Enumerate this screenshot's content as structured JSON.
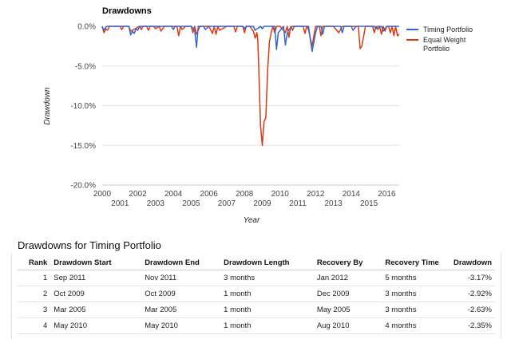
{
  "chart_data": {
    "type": "line",
    "title": "Drawdowns",
    "xlabel": "Year",
    "ylabel": "Drawdown",
    "xlim": [
      2000,
      2016.7
    ],
    "ylim": [
      -20,
      0
    ],
    "x_ticks": [
      "2000",
      "2001",
      "2002",
      "2003",
      "2004",
      "2005",
      "2006",
      "2007",
      "2008",
      "2009",
      "2010",
      "2011",
      "2012",
      "2013",
      "2014",
      "2015",
      "2016"
    ],
    "y_ticks": [
      "0.0%",
      "-5.0%",
      "-10.0%",
      "-15.0%",
      "-20.0%"
    ],
    "grid": true,
    "legend": "right",
    "series": [
      {
        "name": "Timing Portfolio",
        "color": "#3366cc",
        "x": [
          2000.0,
          2000.08,
          2000.17,
          2000.25,
          2001.5,
          2001.6,
          2001.7,
          2001.8,
          2001.9,
          2002.0,
          2002.1,
          2003.9,
          2004.0,
          2004.1,
          2005.0,
          2005.2,
          2005.3,
          2005.4,
          2005.7,
          2005.8,
          2005.9,
          2006.0,
          2007.9,
          2008.0,
          2008.1,
          2008.5,
          2008.6,
          2008.7,
          2008.8,
          2008.9,
          2009.0,
          2009.1,
          2009.7,
          2009.8,
          2009.9,
          2010.2,
          2010.3,
          2010.4,
          2010.5,
          2010.6,
          2010.7,
          2011.0,
          2011.6,
          2011.7,
          2011.8,
          2011.9,
          2012.0,
          2012.1,
          2012.3,
          2012.4,
          2012.5,
          2013.4,
          2013.5,
          2013.6,
          2014.0,
          2014.1,
          2014.2,
          2014.3,
          2015.3,
          2015.4,
          2015.5,
          2015.7,
          2015.8,
          2016.0,
          2016.7
        ],
        "y": [
          0,
          -0.5,
          -0.2,
          0,
          0,
          -1.1,
          -0.6,
          -0.9,
          -0.3,
          -0.5,
          0,
          0,
          -0.4,
          0,
          0,
          -0.5,
          -2.63,
          0,
          0,
          -0.4,
          -0.2,
          0,
          0,
          -0.3,
          0,
          0,
          -0.5,
          -0.3,
          -0.2,
          0,
          -0.3,
          0,
          0,
          -2.92,
          -0.8,
          0,
          -2.35,
          -0.9,
          -0.4,
          -0.2,
          0,
          0,
          0,
          -1.6,
          -3.17,
          -2.0,
          -0.8,
          0,
          0,
          -1.0,
          0,
          0,
          -0.8,
          0,
          0,
          -0.5,
          -0.2,
          0,
          0,
          -0.3,
          0,
          0,
          -0.6,
          0,
          0
        ]
      },
      {
        "name": "Equal Weight Portfolio",
        "color": "#dc3912",
        "x": [
          2000.0,
          2000.1,
          2000.2,
          2000.3,
          2000.4,
          2001.0,
          2001.1,
          2001.2,
          2001.5,
          2001.6,
          2002.1,
          2002.2,
          2002.3,
          2002.5,
          2002.6,
          2002.7,
          2002.9,
          2003.0,
          2003.2,
          2003.3,
          2003.5,
          2003.6,
          2004.2,
          2004.3,
          2004.4,
          2004.5,
          2004.7,
          2005.0,
          2005.1,
          2005.2,
          2005.3,
          2005.5,
          2006.0,
          2006.2,
          2006.3,
          2006.4,
          2006.5,
          2006.6,
          2007.0,
          2007.4,
          2007.5,
          2007.6,
          2007.9,
          2008.0,
          2008.1,
          2008.3,
          2008.5,
          2008.6,
          2008.7,
          2008.75,
          2008.8,
          2008.9,
          2009.0,
          2009.1,
          2009.2,
          2009.3,
          2009.4,
          2009.5,
          2009.6,
          2009.7,
          2009.8,
          2010.0,
          2010.3,
          2010.4,
          2010.5,
          2010.6,
          2010.7,
          2010.8,
          2011.0,
          2011.3,
          2011.4,
          2011.5,
          2011.6,
          2011.7,
          2011.8,
          2011.9,
          2012.0,
          2012.2,
          2012.3,
          2012.4,
          2012.6,
          2013.0,
          2013.3,
          2013.5,
          2013.7,
          2014.0,
          2014.4,
          2014.5,
          2014.6,
          2014.8,
          2015.0,
          2015.2,
          2015.3,
          2015.4,
          2015.5,
          2015.6,
          2015.7,
          2015.8,
          2015.9,
          2016.0,
          2016.1,
          2016.2,
          2016.3,
          2016.4,
          2016.5,
          2016.6,
          2016.7
        ],
        "y": [
          0,
          -0.8,
          -0.3,
          -0.5,
          0,
          0,
          -0.4,
          0,
          0,
          -0.6,
          0,
          -0.4,
          0,
          0,
          -0.5,
          0,
          0,
          -0.3,
          0,
          -0.6,
          0,
          0,
          0,
          -1.2,
          0,
          -0.4,
          0,
          0,
          -0.8,
          0,
          -1.0,
          0,
          0,
          -0.9,
          0,
          -1.0,
          0,
          -0.5,
          0,
          0,
          -0.7,
          0,
          0,
          -0.8,
          0,
          0,
          -0.6,
          -1.5,
          -0.8,
          -1.8,
          -5.0,
          -12.5,
          -15.0,
          -12.0,
          -11.5,
          -5.5,
          -2.0,
          -0.8,
          0,
          -0.8,
          0,
          0,
          -0.8,
          0,
          -1.4,
          0,
          -0.5,
          0,
          0,
          0,
          -0.9,
          0,
          -0.4,
          -1.5,
          -2.5,
          -1.2,
          0,
          0,
          -1.2,
          0,
          0,
          0,
          -0.8,
          0,
          0,
          0,
          0,
          -2.8,
          -2.5,
          0,
          0,
          0,
          -0.8,
          0,
          -0.4,
          0,
          -1.0,
          0,
          -0.6,
          0,
          0,
          -0.8,
          0,
          -1.2,
          0,
          -1.2,
          -1.0
        ]
      }
    ]
  },
  "table": {
    "title": "Drawdowns for Timing Portfolio",
    "headers": [
      "Rank",
      "Drawdown Start",
      "Drawdown End",
      "Drawdown Length",
      "Recovery By",
      "Recovery Time",
      "Drawdown"
    ],
    "rows": [
      [
        "1",
        "Sep 2011",
        "Nov 2011",
        "3 months",
        "Jan 2012",
        "5 months",
        "-3.17%"
      ],
      [
        "2",
        "Oct 2009",
        "Oct 2009",
        "1 month",
        "Dec 2009",
        "3 months",
        "-2.92%"
      ],
      [
        "3",
        "Mar 2005",
        "Mar 2005",
        "1 month",
        "May 2005",
        "3 months",
        "-2.63%"
      ],
      [
        "4",
        "May 2010",
        "May 2010",
        "1 month",
        "Aug 2010",
        "4 months",
        "-2.35%"
      ]
    ]
  }
}
